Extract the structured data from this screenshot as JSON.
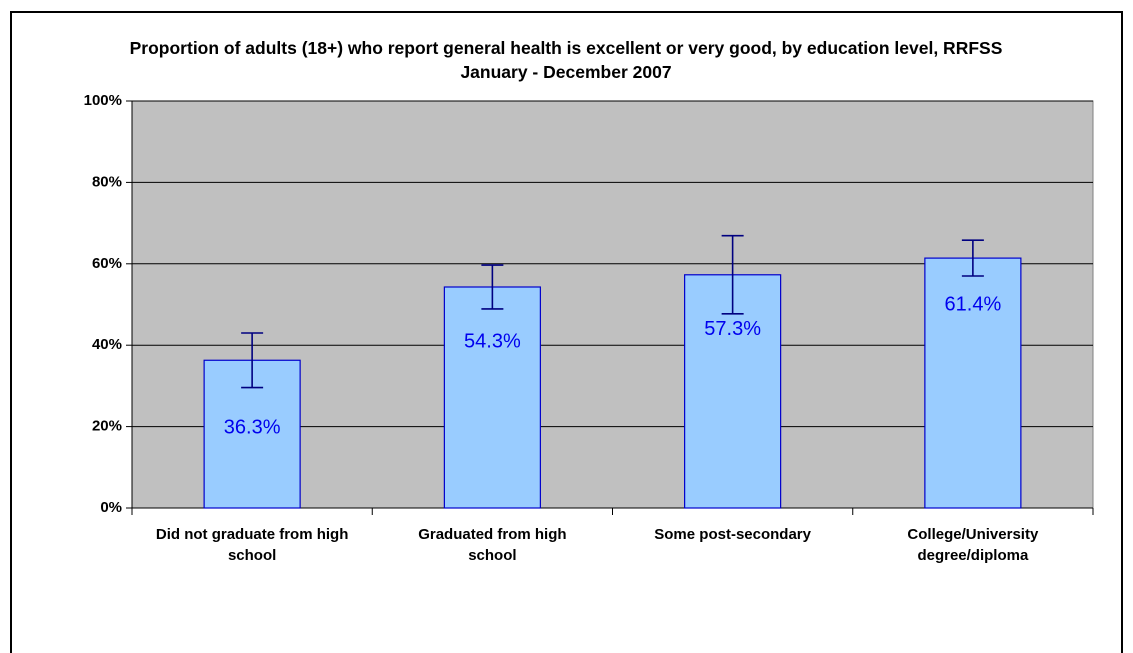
{
  "chart_data": {
    "type": "bar",
    "title": "Proportion of adults (18+) who report general health is excellent or very good, by education level, RRFSS January - December 2007",
    "categories": [
      "Did not graduate from high school",
      "Graduated from high school",
      "Some post-secondary",
      "College/University degree/diploma"
    ],
    "values": [
      36.3,
      54.3,
      57.3,
      61.4
    ],
    "value_labels": [
      "36.3%",
      "54.3%",
      "57.3%",
      "61.4%"
    ],
    "errors": [
      6.7,
      5.4,
      9.6,
      4.4
    ],
    "color": "#99ccff",
    "ylim": [
      0,
      100
    ],
    "yticks": [
      {
        "value": 0,
        "label": "0%"
      },
      {
        "value": 20,
        "label": "20%"
      },
      {
        "value": 40,
        "label": "40%"
      },
      {
        "value": 60,
        "label": "60%"
      },
      {
        "value": 80,
        "label": "80%"
      },
      {
        "value": 100,
        "label": "100%"
      }
    ],
    "grid": true
  }
}
